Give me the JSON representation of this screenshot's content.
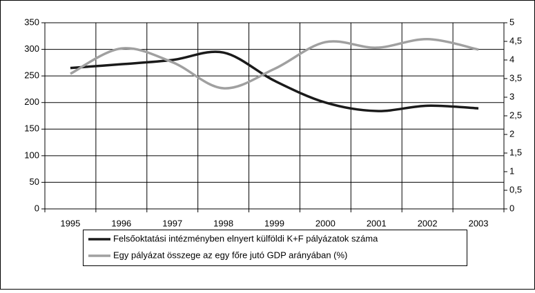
{
  "chart_data": {
    "type": "line",
    "categories": [
      "1995",
      "1996",
      "1997",
      "1998",
      "1999",
      "2000",
      "2001",
      "2002",
      "2003"
    ],
    "series": [
      {
        "name": "Felsőoktatási intézményben elnyert külföldi K+F pályázatok száma",
        "color": "#1a1a1a",
        "values": [
          265,
          272,
          280,
          294,
          241,
          200,
          184,
          194,
          189
        ]
      },
      {
        "name": "Egy pályázat összege az egy főre jutó GDP arányában (%)",
        "color": "#a0a0a0",
        "axis": "y2",
        "values": [
          3.63,
          4.31,
          3.94,
          3.24,
          3.76,
          4.48,
          4.33,
          4.56,
          4.28
        ]
      }
    ],
    "ylim": [
      0,
      350
    ],
    "yticks": [
      0,
      50,
      100,
      150,
      200,
      250,
      300,
      350
    ],
    "y2lim": [
      0,
      5
    ],
    "y2ticks": [
      0,
      {
        "value": 0.5,
        "label": "0,5"
      },
      1,
      {
        "value": 1.5,
        "label": "1,5"
      },
      2,
      {
        "value": 2.5,
        "label": "2,5"
      },
      3,
      {
        "value": 3.5,
        "label": "3,5"
      },
      4,
      {
        "value": 4.5,
        "label": "4,5"
      },
      5
    ],
    "grid": true,
    "legend": "bottom"
  }
}
